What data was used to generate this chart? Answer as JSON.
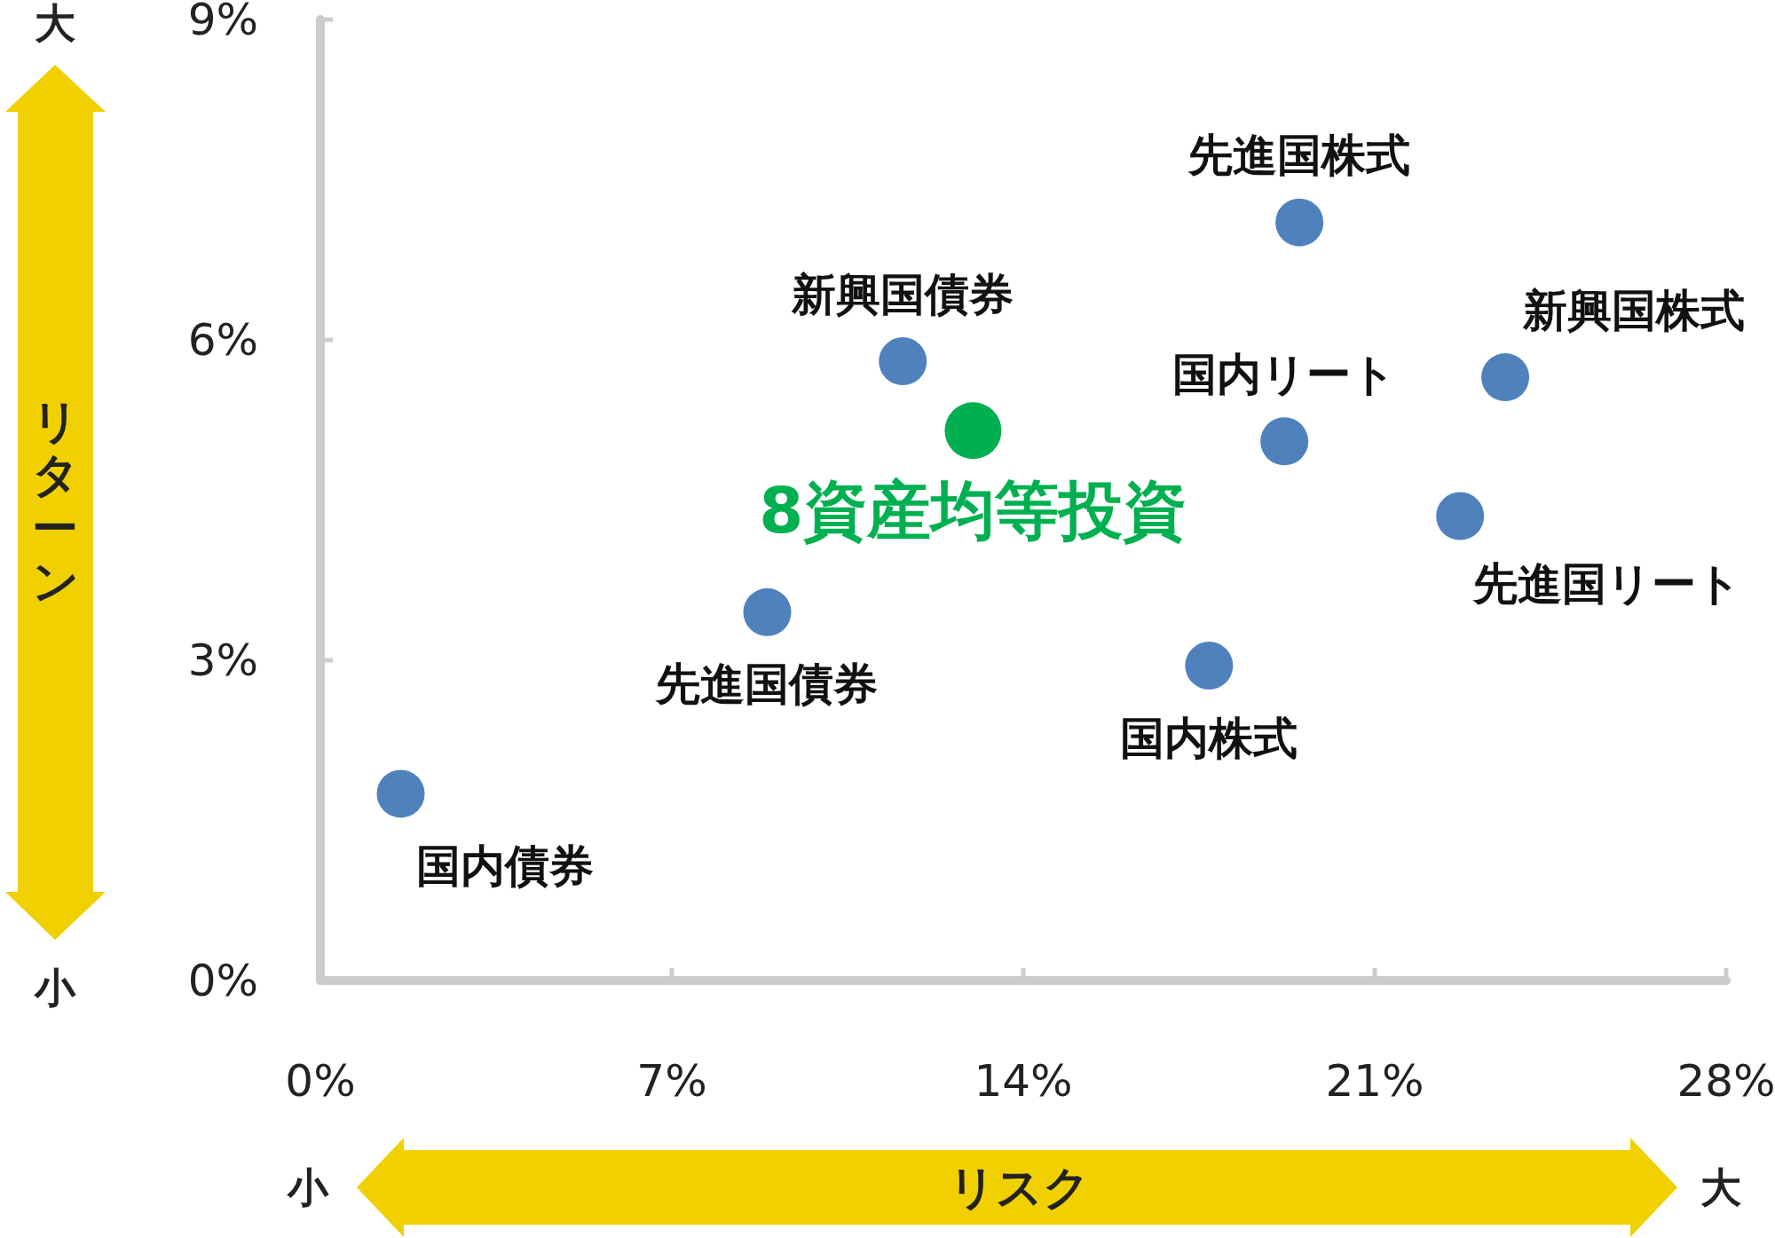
{
  "chart_data": {
    "type": "scatter",
    "xlabel": "リスク",
    "ylabel": "リターン",
    "xlim": [
      0,
      28
    ],
    "ylim": [
      0,
      9
    ],
    "xticks": [
      {
        "value": 0,
        "label": "0%"
      },
      {
        "value": 7,
        "label": "7%"
      },
      {
        "value": 14,
        "label": "14%"
      },
      {
        "value": 21,
        "label": "21%"
      },
      {
        "value": 28,
        "label": "28%"
      }
    ],
    "yticks": [
      {
        "value": 0,
        "label": "0%"
      },
      {
        "value": 3,
        "label": "3%"
      },
      {
        "value": 6,
        "label": "6%"
      },
      {
        "value": 9,
        "label": "9%"
      }
    ],
    "series": [
      {
        "name": "国内債券",
        "color": "#4f81bd",
        "x": [
          1.6
        ],
        "values": [
          1.75
        ]
      },
      {
        "name": "先進国債券",
        "color": "#4f81bd",
        "x": [
          8.9
        ],
        "values": [
          3.45
        ]
      },
      {
        "name": "新興国債券",
        "color": "#4f81bd",
        "x": [
          11.6
        ],
        "values": [
          5.8
        ]
      },
      {
        "name": "8資産均等投資",
        "color": "#00b050",
        "x": [
          13.0
        ],
        "values": [
          5.15
        ]
      },
      {
        "name": "国内株式",
        "color": "#4f81bd",
        "x": [
          17.7
        ],
        "values": [
          2.95
        ]
      },
      {
        "name": "国内リート",
        "color": "#4f81bd",
        "x": [
          19.2
        ],
        "values": [
          5.05
        ]
      },
      {
        "name": "先進国株式",
        "color": "#4f81bd",
        "x": [
          19.5
        ],
        "values": [
          7.1
        ]
      },
      {
        "name": "先進国リート",
        "color": "#4f81bd",
        "x": [
          22.7
        ],
        "values": [
          4.35
        ]
      },
      {
        "name": "新興国株式",
        "color": "#4f81bd",
        "x": [
          23.6
        ],
        "values": [
          5.65
        ]
      }
    ],
    "annotations": [
      "大",
      "小",
      "小",
      "大"
    ]
  }
}
